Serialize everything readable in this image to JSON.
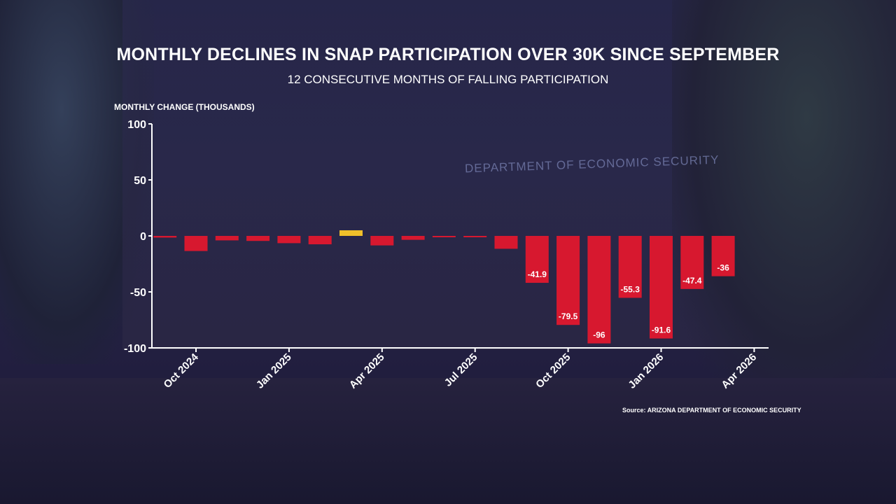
{
  "background_sign": "DEPARTMENT OF ECONOMIC SECURITY",
  "chart_data": {
    "type": "bar",
    "title": "MONTHLY DECLINES IN SNAP PARTICIPATION OVER 30K SINCE SEPTEMBER",
    "subtitle": "12 CONSECUTIVE MONTHS OF FALLING PARTICIPATION",
    "ylabel": "MONTHLY CHANGE (THOUSANDS)",
    "xlabel": "",
    "ylim": [
      -100,
      100
    ],
    "yticks": [
      "100",
      "50",
      "0",
      "-50",
      "-100"
    ],
    "xticks": [
      "Oct 2024",
      "Jan 2025",
      "Apr 2025",
      "Jul 2025",
      "Oct 2025",
      "Jan 2026",
      "Apr 2026"
    ],
    "grid": false,
    "categories": [
      "Sep 2024",
      "Oct 2024",
      "Nov 2024",
      "Dec 2024",
      "Jan 2025",
      "Feb 2025",
      "Mar 2025",
      "Apr 2025",
      "May 2025",
      "Jun 2025",
      "Jul 2025",
      "Aug 2025",
      "Sep 2025",
      "Oct 2025",
      "Nov 2025",
      "Dec 2025",
      "Jan 2026",
      "Feb 2026",
      "Mar 2026"
    ],
    "values": [
      -1.5,
      -13.5,
      -4,
      -4.5,
      -6.5,
      -7.5,
      5,
      -8.5,
      -3.5,
      -1,
      -1,
      -11.5,
      -41.9,
      -79.5,
      -96,
      -55.3,
      -91.6,
      -47.4,
      -36
    ],
    "data_labels": [
      "",
      "",
      "",
      "",
      "",
      "",
      "",
      "",
      "",
      "",
      "",
      "",
      "-41.9",
      "-79.5",
      "-96",
      "-55.3",
      "-91.6",
      "-47.4",
      "-36"
    ],
    "colors": {
      "negative": "#d7182f",
      "positive": "#f0c02a"
    },
    "source": "Source: ARIZONA DEPARTMENT OF ECONOMIC SECURITY"
  }
}
